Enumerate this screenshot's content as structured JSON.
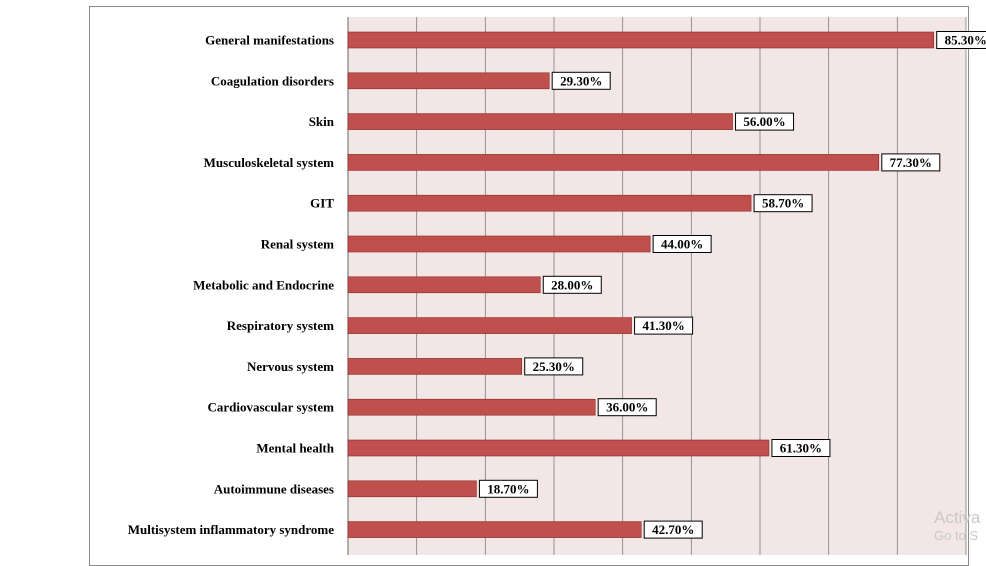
{
  "chart_data": {
    "type": "bar",
    "orientation": "horizontal",
    "categories": [
      "General manifestations",
      "Coagulation disorders",
      "Skin",
      "Musculoskeletal system",
      "GIT",
      "Renal system",
      "Metabolic and Endocrine",
      "Respiratory system",
      "Nervous system",
      "Cardiovascular system",
      "Mental health",
      "Autoimmune diseases",
      "Multisystem inflammatory syndrome"
    ],
    "values": [
      85.3,
      29.3,
      56.0,
      77.3,
      58.7,
      44.0,
      28.0,
      41.3,
      25.3,
      36.0,
      61.3,
      18.7,
      42.7
    ],
    "value_labels": [
      "85.30%",
      "29.30%",
      "56.00%",
      "77.30%",
      "58.70%",
      "44.00%",
      "28.00%",
      "41.30%",
      "25.30%",
      "36.00%",
      "61.30%",
      "18.70%",
      "42.70%"
    ],
    "xlim": [
      0,
      90
    ],
    "x_gridline_step": 10,
    "grid": true,
    "legend": "none",
    "title": "",
    "xlabel": "",
    "ylabel": "",
    "colors": {
      "bar": "#c0504d",
      "bar_edge": "#8b2a28",
      "plot_background": "#f2e6e6",
      "gridline": "#7f7f7f"
    }
  },
  "watermark": {
    "line1": "Activa",
    "line2": "Go to S"
  }
}
